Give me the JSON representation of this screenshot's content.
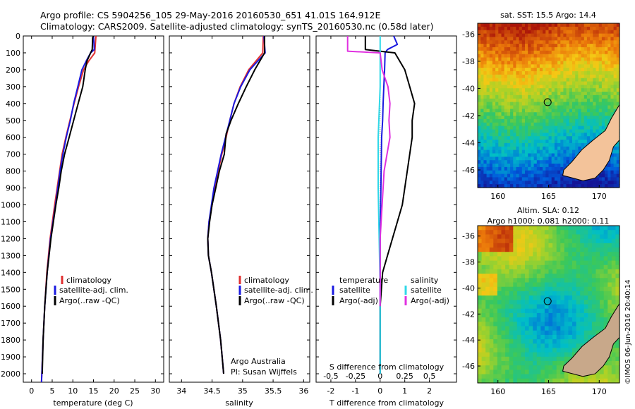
{
  "figure": {
    "title_line1": "Argo profile: CS 5904256_105 29-May-2016 20160530_651 41.01S 164.912E",
    "title_line2": "Climatology: CARS2009. Satellite-adjusted climatology: synTS_20160530.nc (0.58d later)",
    "credit_line1": "Argo Australia",
    "credit_line2": "PI: Susan Wijffels",
    "stamp": "©IMOS 06-Jun-2016 20:40:14"
  },
  "colors": {
    "climatology": "#e03030",
    "satellite": "#1a1ae0",
    "argo": "#000000",
    "temp_sat": "#1a1ae0",
    "sal_sat": "#30d8e8",
    "sal_argo": "#e030e0"
  },
  "chart_data": [
    {
      "type": "line",
      "xlabel": "temperature (deg C)",
      "xlim": [
        -2,
        32
      ],
      "ylim": [
        2050,
        0
      ],
      "xticks": [
        "0",
        "5",
        "10",
        "15",
        "20",
        "25",
        "30"
      ],
      "yticks": [
        "0",
        "100",
        "200",
        "300",
        "400",
        "500",
        "600",
        "700",
        "800",
        "900",
        "1000",
        "1100",
        "1200",
        "1300",
        "1400",
        "1500",
        "1600",
        "1700",
        "1800",
        "1900",
        "2000"
      ],
      "legend": [
        "climatology",
        "satellite-adj. clim.",
        "Argo(..raw -QC)"
      ],
      "series": [
        {
          "name": "climatology",
          "color": "#e03030",
          "depth": [
            0,
            100,
            150,
            200,
            300,
            400,
            500,
            600,
            700,
            800,
            1000,
            1200,
            1400,
            1600,
            1800,
            2000,
            2050
          ],
          "values": [
            15.6,
            15.3,
            13.8,
            12.6,
            11.4,
            10.3,
            9.3,
            8.3,
            7.4,
            6.8,
            5.6,
            4.5,
            3.7,
            3.2,
            2.8,
            2.5,
            2.4
          ]
        },
        {
          "name": "satellite-adj. clim.",
          "color": "#1a1ae0",
          "depth": [
            0,
            80,
            100,
            150,
            200,
            300,
            400,
            500,
            600,
            700,
            800,
            1000,
            1200,
            1400,
            1600,
            1800,
            2000,
            2050
          ],
          "values": [
            15.0,
            15.2,
            14.3,
            13.2,
            12.2,
            11.2,
            10.2,
            9.4,
            8.4,
            7.6,
            6.9,
            5.8,
            4.6,
            3.8,
            3.2,
            2.8,
            2.5,
            2.4
          ]
        },
        {
          "name": "Argo(..raw -QC)",
          "color": "#000000",
          "depth": [
            0,
            10,
            80,
            100,
            150,
            200,
            300,
            400,
            500,
            600,
            700,
            800,
            900,
            1000,
            1200,
            1400,
            1600,
            1800,
            2000
          ],
          "values": [
            15.0,
            14.8,
            14.7,
            14.3,
            13.4,
            13.0,
            12.4,
            11.3,
            10.2,
            9.1,
            8.0,
            7.2,
            6.6,
            5.9,
            4.7,
            3.8,
            3.2,
            2.8,
            2.6
          ]
        }
      ]
    },
    {
      "type": "line",
      "xlabel": "salinity",
      "xlim": [
        33.8,
        36.1
      ],
      "ylim": [
        2050,
        0
      ],
      "xticks": [
        "34",
        "34.5",
        "35",
        "35.5",
        "36"
      ],
      "legend": [
        "climatology",
        "satellite-adj. clim.",
        "Argo(..raw -QC)"
      ],
      "series": [
        {
          "name": "climatology",
          "color": "#e03030",
          "depth": [
            0,
            100,
            200,
            300,
            400,
            500,
            600,
            700,
            800,
            900,
            1000,
            1100,
            1200,
            1300,
            1400,
            1600,
            1800,
            2000
          ],
          "values": [
            35.34,
            35.33,
            35.1,
            34.96,
            34.86,
            34.79,
            34.73,
            34.66,
            34.6,
            34.54,
            34.5,
            34.45,
            34.43,
            34.44,
            34.49,
            34.57,
            34.64,
            34.69
          ]
        },
        {
          "name": "satellite-adj. clim.",
          "color": "#1a1ae0",
          "depth": [
            0,
            100,
            200,
            300,
            400,
            500,
            600,
            700,
            800,
            900,
            1000,
            1100,
            1200,
            1300,
            1400,
            1600,
            1800,
            2000
          ],
          "values": [
            35.35,
            35.37,
            35.12,
            34.97,
            34.86,
            34.79,
            34.72,
            34.65,
            34.59,
            34.53,
            34.49,
            34.45,
            34.43,
            34.44,
            34.49,
            34.57,
            34.64,
            34.69
          ]
        },
        {
          "name": "Argo(..raw -QC)",
          "color": "#000000",
          "depth": [
            0,
            100,
            200,
            300,
            400,
            500,
            580,
            620,
            700,
            800,
            900,
            1000,
            1100,
            1200,
            1300,
            1400,
            1600,
            1800,
            2000
          ],
          "values": [
            35.36,
            35.36,
            35.2,
            35.06,
            34.93,
            34.81,
            34.73,
            34.72,
            34.7,
            34.62,
            34.56,
            34.5,
            34.46,
            34.43,
            34.44,
            34.49,
            34.57,
            34.64,
            34.69
          ]
        }
      ]
    },
    {
      "type": "line",
      "xlabel": "T difference from climatology",
      "xlabel_top": "S difference from climatology",
      "xlim": [
        -2.6,
        3.1
      ],
      "ylim": [
        2050,
        0
      ],
      "xticks": [
        "-2",
        "-1",
        "0",
        "1",
        "2"
      ],
      "xticks_top": [
        "-0.5",
        "-0.25",
        "0",
        "0.25",
        "0.5"
      ],
      "legend": [
        "temperature",
        "satellite",
        "Argo(-adj)",
        "salinity",
        "satellite",
        "Argo(-adj)"
      ],
      "series": [
        {
          "name": "satellite",
          "color": "#1a1ae0",
          "depth": [
            0,
            50,
            80,
            100,
            200,
            300,
            400,
            500,
            600,
            800,
            1000,
            1200,
            1400,
            1600,
            1800,
            2000
          ],
          "values": [
            0.55,
            0.7,
            0.3,
            0.2,
            0.18,
            0.15,
            0.12,
            0.1,
            0.06,
            0.04,
            0.02,
            0.0,
            0.0,
            0.0,
            0.0,
            0.0
          ]
        },
        {
          "name": "Argo(-adj)",
          "color": "#000000",
          "depth": [
            0,
            10,
            80,
            100,
            200,
            300,
            400,
            500,
            600,
            700,
            800,
            900,
            1000,
            1100,
            1200,
            1300,
            1400,
            1600,
            1800,
            2000
          ],
          "values": [
            -0.6,
            -0.6,
            -0.6,
            0.6,
            1.0,
            1.2,
            1.4,
            1.3,
            1.3,
            1.2,
            1.1,
            1.0,
            0.9,
            0.7,
            0.5,
            0.3,
            0.1,
            0.0,
            0.0,
            0.0
          ]
        },
        {
          "name": "satellite",
          "color": "#30d8e8",
          "depth": [
            0,
            100,
            300,
            600,
            900,
            1200,
            1500,
            2000
          ],
          "values": [
            0.0,
            0.0,
            0.0,
            -0.02,
            -0.02,
            -0.01,
            0.0,
            0.0
          ]
        },
        {
          "name": "Argo(-adj)",
          "color": "#e030e0",
          "depth": [
            0,
            10,
            90,
            100,
            200,
            300,
            400,
            500,
            600,
            700,
            800,
            1000,
            1200,
            1400,
            1600
          ],
          "values": [
            -0.33,
            -0.33,
            -0.33,
            0.0,
            0.02,
            0.08,
            0.1,
            0.09,
            0.1,
            0.07,
            0.04,
            0.02,
            0.0,
            0.0,
            0.0
          ]
        }
      ]
    },
    {
      "type": "heatmap",
      "title": "sat. SST: 15.5 Argo: 14.4",
      "xlim": [
        158,
        172
      ],
      "ylim": [
        -47.3,
        -35.2
      ],
      "xticks": [
        "160",
        "165",
        "170"
      ],
      "yticks": [
        "-36",
        "-38",
        "-40",
        "-42",
        "-44",
        "-46"
      ],
      "marker": {
        "lon": 164.912,
        "lat": -41.01
      }
    },
    {
      "type": "heatmap",
      "title_line1": "Altim. SLA: 0.12",
      "title_line2": "Argo h1000: 0.081 h2000: 0.11",
      "xlim": [
        158,
        172
      ],
      "ylim": [
        -47.3,
        -35.2
      ],
      "xticks": [
        "160",
        "165",
        "170"
      ],
      "yticks": [
        "-36",
        "-38",
        "-40",
        "-42",
        "-44",
        "-46"
      ],
      "marker": {
        "lon": 164.912,
        "lat": -41.01
      }
    }
  ]
}
